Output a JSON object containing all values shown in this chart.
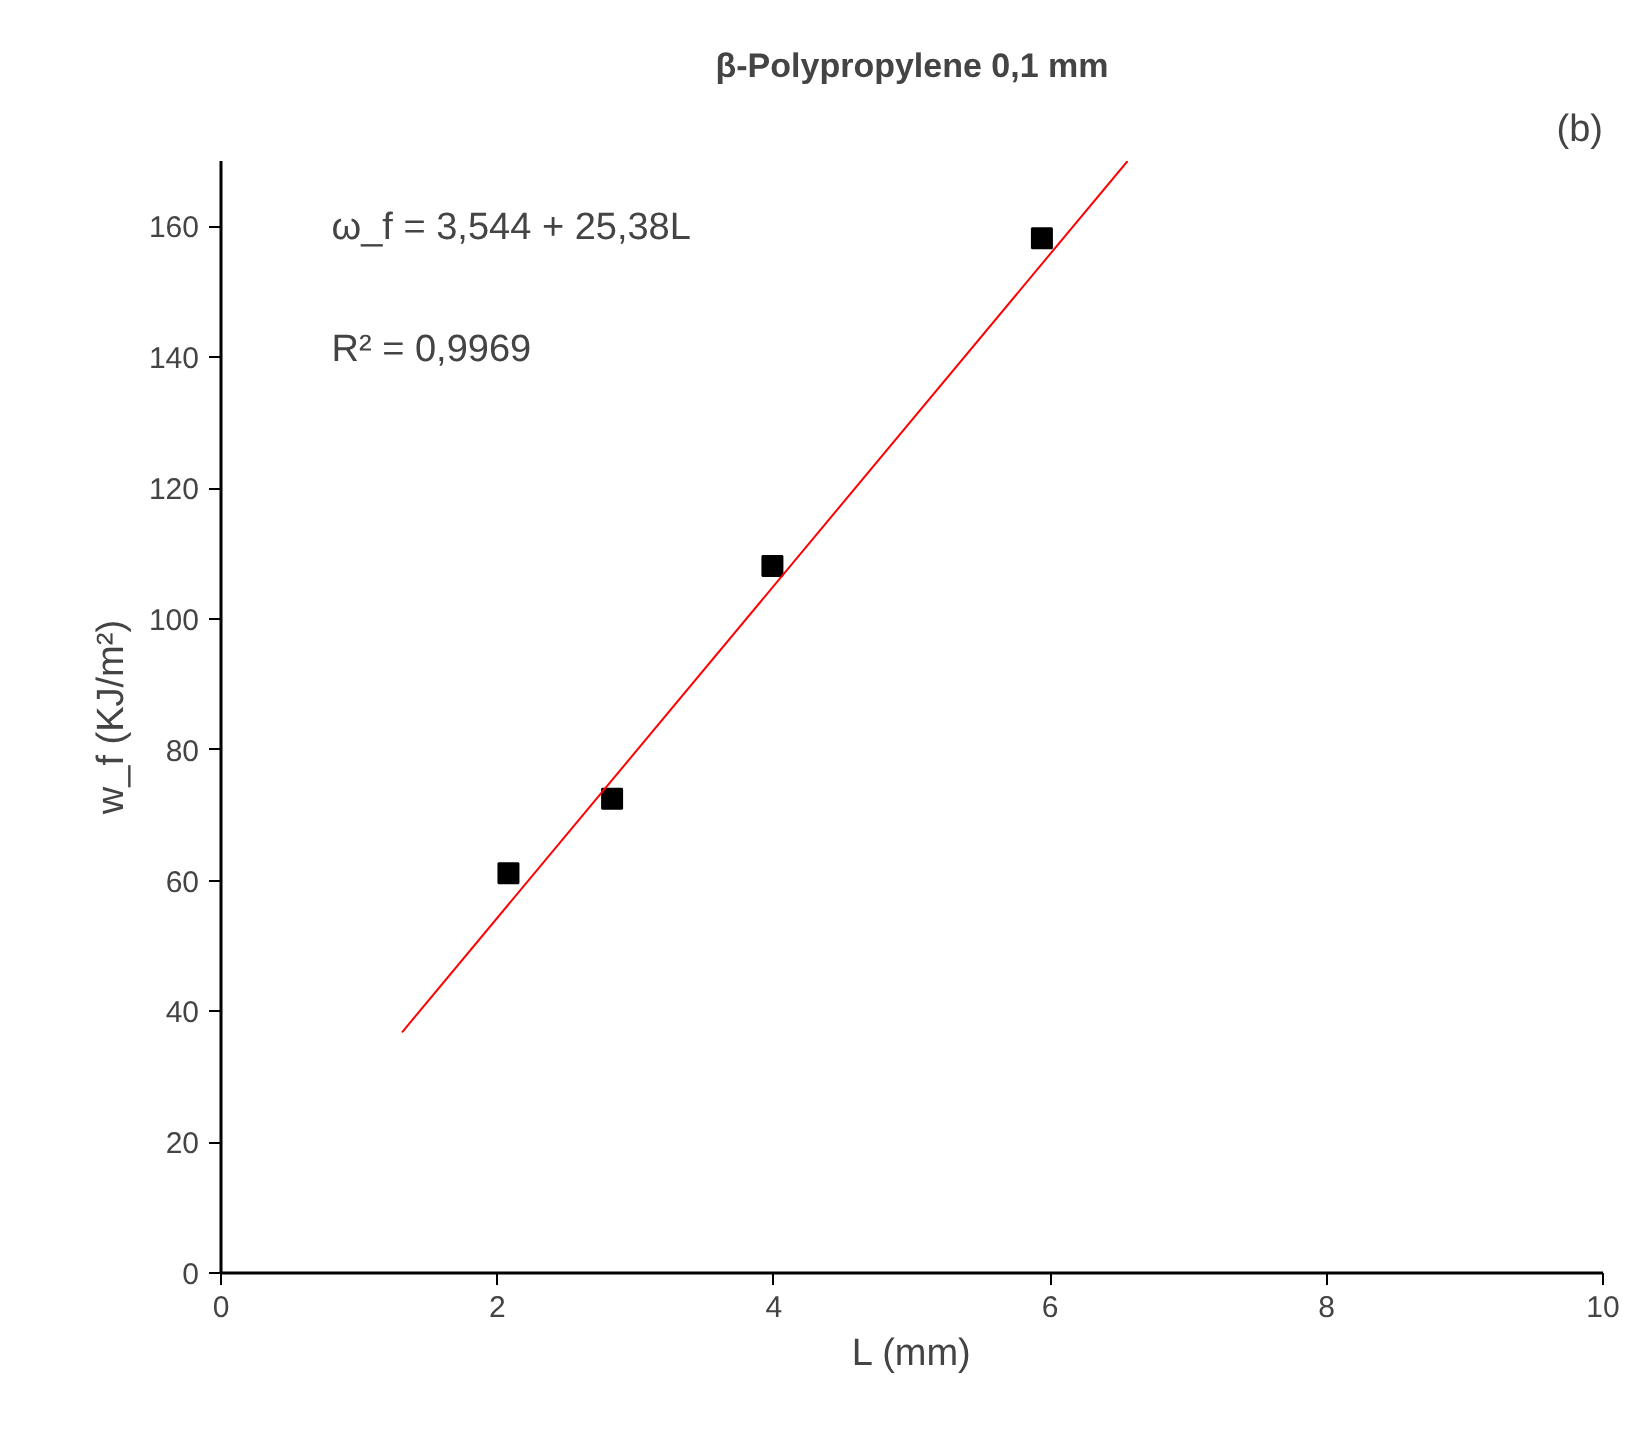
{
  "chart_data": {
    "type": "scatter",
    "title": "β-Polypropylene 0,1 mm",
    "xlabel": "L (mm)",
    "ylabel": "w_f (KJ/m²)",
    "annotations": [
      "(b)",
      "ω_f = 3,544 + 25,38L",
      "R² = 0,9969"
    ],
    "x": [
      2.08,
      2.83,
      3.99,
      5.94
    ],
    "series": [
      {
        "color": "#000000",
        "marker": "square",
        "values": [
          61.1,
          72.5,
          108.1,
          158.2
        ]
      },
      {
        "type": "line",
        "color": "#ff0000",
        "line_style": "solid",
        "x": [
          1.31,
          6.56
        ],
        "values": [
          36.8,
          170.0
        ]
      }
    ],
    "xlim": [
      0,
      10
    ],
    "ylim": [
      0,
      170
    ],
    "xticks": [
      0,
      2,
      4,
      6,
      8,
      10
    ],
    "yticks": [
      0,
      20,
      40,
      60,
      80,
      100,
      120,
      140,
      160
    ],
    "grid": false
  }
}
